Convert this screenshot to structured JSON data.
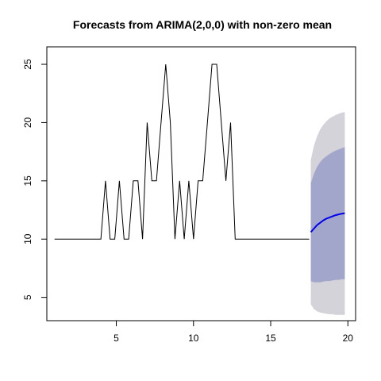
{
  "chart_data": {
    "type": "line",
    "title": "Forecasts from ARIMA(2,0,0) with non-zero mean",
    "xlabel": "",
    "ylabel": "",
    "xlim": [
      0.5,
      20.5
    ],
    "ylim": [
      3,
      26.5
    ],
    "x_ticks": [
      5,
      10,
      15,
      20
    ],
    "y_ticks": [
      5,
      10,
      15,
      20,
      25
    ],
    "grid": false,
    "series": [
      {
        "role": "observed",
        "color": "#000000",
        "x": [
          1.0,
          1.3,
          1.6,
          1.9,
          2.2,
          2.5,
          2.8,
          3.1,
          3.4,
          3.7,
          4.0,
          4.3,
          4.6,
          4.9,
          5.2,
          5.5,
          5.8,
          6.1,
          6.4,
          6.7,
          7.0,
          7.3,
          7.6,
          7.9,
          8.2,
          8.5,
          8.8,
          9.1,
          9.4,
          9.7,
          10.0,
          10.3,
          10.6,
          10.9,
          11.2,
          11.5,
          11.8,
          12.1,
          12.4,
          12.7,
          13.0,
          13.3,
          13.6,
          13.9,
          14.2,
          14.5,
          14.8,
          15.1,
          15.4,
          15.7,
          16.0,
          16.3,
          16.6,
          16.9,
          17.2,
          17.5
        ],
        "y": [
          10,
          10,
          10,
          10,
          10,
          10,
          10,
          10,
          10,
          10,
          10,
          15,
          10,
          10,
          15,
          10,
          10,
          15,
          15,
          10,
          20,
          15,
          15,
          20,
          25,
          20,
          10,
          15,
          10,
          15,
          10,
          15,
          15,
          20,
          25,
          25,
          20,
          15,
          20,
          10,
          10,
          10,
          10,
          10,
          10,
          10,
          10,
          10,
          10,
          10,
          10,
          10,
          10,
          10,
          10,
          10
        ]
      }
    ],
    "forecast": {
      "color": "#0000ee",
      "x": [
        17.6,
        17.8,
        18.0,
        18.2,
        18.4,
        18.6,
        18.8,
        19.0,
        19.2,
        19.4,
        19.6,
        19.8
      ],
      "mean": [
        10.6,
        10.9,
        11.2,
        11.4,
        11.6,
        11.75,
        11.85,
        11.95,
        12.05,
        12.12,
        12.18,
        12.22
      ],
      "lo80": [
        6.4,
        6.3,
        6.3,
        6.3,
        6.35,
        6.4,
        6.4,
        6.45,
        6.5,
        6.5,
        6.55,
        6.55
      ],
      "hi80": [
        14.8,
        15.6,
        16.2,
        16.6,
        16.9,
        17.1,
        17.3,
        17.45,
        17.6,
        17.7,
        17.8,
        17.9
      ],
      "lo95": [
        4.4,
        4.0,
        3.8,
        3.7,
        3.65,
        3.6,
        3.55,
        3.55,
        3.5,
        3.5,
        3.5,
        3.5
      ],
      "hi95": [
        16.8,
        18.0,
        18.8,
        19.4,
        19.8,
        20.1,
        20.35,
        20.5,
        20.65,
        20.75,
        20.85,
        20.9
      ],
      "color_80": "#a3a6cb",
      "color_95": "#d3d3d9"
    }
  }
}
